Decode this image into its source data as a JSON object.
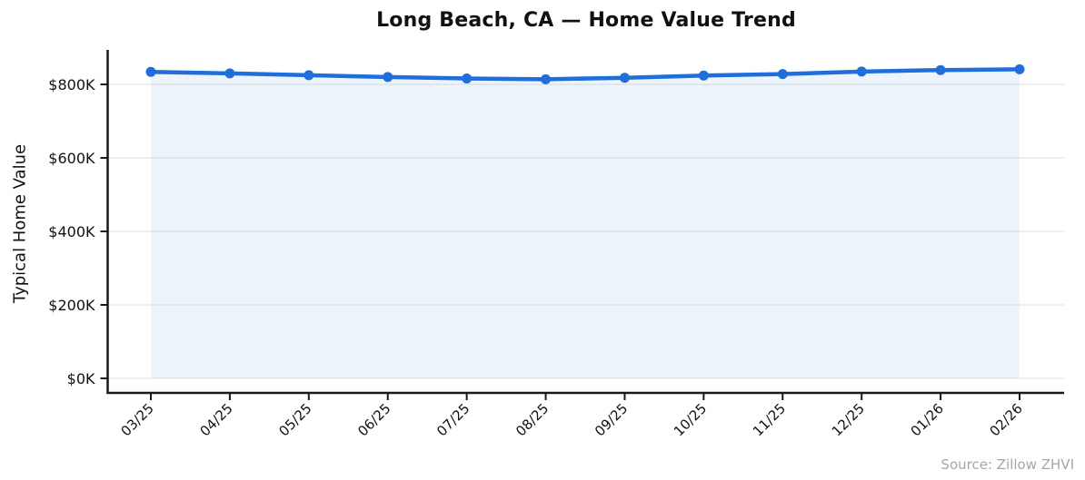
{
  "title": "Long Beach, CA — Home Value Trend",
  "source_caption": "Source: Zillow ZHVI",
  "chart_data": {
    "type": "line",
    "title": "Long Beach, CA — Home Value Trend",
    "xlabel": "",
    "ylabel": "Typical Home Value",
    "x": [
      "03/25",
      "04/25",
      "05/25",
      "06/25",
      "07/25",
      "08/25",
      "09/25",
      "10/25",
      "11/25",
      "12/25",
      "01/26",
      "02/26"
    ],
    "series": [
      {
        "name": "Typical Home Value",
        "values": [
          834000,
          830000,
          825000,
          820000,
          816000,
          814000,
          818000,
          824000,
          828000,
          835000,
          839000,
          841000
        ]
      }
    ],
    "ytick_values": [
      0,
      200000,
      400000,
      600000,
      800000
    ],
    "ytick_labels": [
      "$0K",
      "$200K",
      "$400K",
      "$600K",
      "$800K"
    ],
    "ylim": [
      0,
      890000
    ],
    "grid": true,
    "legend": "none",
    "markers": true,
    "area_fill": true,
    "line_color": "#1e6edb",
    "fill_color": "rgba(30, 110, 219, 0.08)",
    "grid_color": "#e8e8e8",
    "axis_color": "#1a1a1a",
    "annotation": "Source: Zillow ZHVI"
  }
}
